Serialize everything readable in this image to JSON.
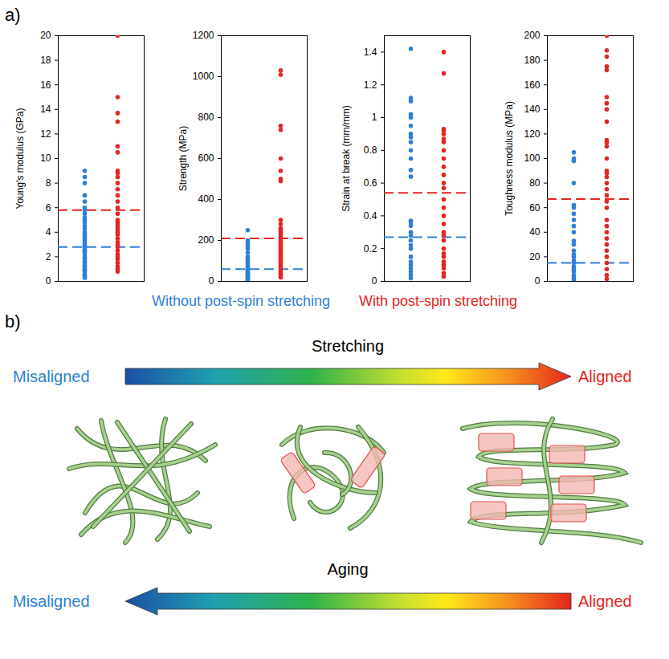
{
  "panel_label": "a)",
  "chart_data": [
    {
      "type": "scatter",
      "ylabel": "Young's modulus (GPa)",
      "ylim": [
        0,
        20
      ],
      "yticks": [
        0,
        2,
        4,
        6,
        8,
        10,
        12,
        14,
        16,
        18,
        20
      ],
      "tick_labels": "y",
      "legend": "bottom",
      "series": [
        {
          "name": "Without post-spin stretching",
          "color": "#2e7fd6",
          "mean": 2.8,
          "values": [
            9,
            8.5,
            8,
            7,
            6.5,
            6,
            5.8,
            5.5,
            5.2,
            5,
            4.8,
            4.5,
            4.3,
            4,
            3.8,
            3.6,
            3.4,
            3.2,
            3,
            2.9,
            2.8,
            2.6,
            2.5,
            2.4,
            2.2,
            2,
            1.9,
            1.8,
            1.6,
            1.5,
            1.3,
            1.2,
            1,
            0.9,
            0.8,
            0.6,
            0.5,
            0.4,
            0.3
          ]
        },
        {
          "name": "With post-spin stretching",
          "color": "#e52521",
          "mean": 5.8,
          "values": [
            20,
            15,
            13.7,
            13,
            11,
            10.5,
            9,
            8.8,
            8.5,
            8,
            7.5,
            7,
            6.5,
            6,
            5.5,
            5,
            4.8,
            4.6,
            4.4,
            4.2,
            4,
            3.8,
            3.5,
            3.2,
            3,
            2.8,
            2.5,
            2.2,
            2,
            1.8,
            1.5,
            1.2,
            1,
            0.8
          ]
        }
      ]
    },
    {
      "type": "scatter",
      "ylabel": "Strength (MPa)",
      "ylim": [
        0,
        1200
      ],
      "yticks": [
        0,
        200,
        400,
        600,
        800,
        1000,
        1200
      ],
      "tick_labels": "y",
      "legend": "bottom",
      "series": [
        {
          "name": "Without post-spin stretching",
          "color": "#2e7fd6",
          "mean": 60,
          "values": [
            250,
            200,
            185,
            175,
            160,
            140,
            120,
            110,
            100,
            90,
            80,
            70,
            65,
            60,
            55,
            50,
            45,
            40,
            35,
            30,
            25,
            20,
            15,
            10,
            5
          ]
        },
        {
          "name": "With post-spin stretching",
          "color": "#e52521",
          "mean": 210,
          "values": [
            1030,
            1010,
            760,
            740,
            600,
            540,
            500,
            490,
            300,
            280,
            260,
            250,
            240,
            230,
            220,
            210,
            200,
            190,
            180,
            170,
            160,
            150,
            140,
            130,
            120,
            110,
            100,
            90,
            80,
            70,
            60,
            50,
            40,
            30,
            20
          ]
        }
      ]
    },
    {
      "type": "scatter",
      "ylabel": "Strain at break (mm/mm)",
      "ylim": [
        0,
        1.5
      ],
      "yticks": [
        0,
        0.2,
        0.4,
        0.6,
        0.8,
        1,
        1.2,
        1.4
      ],
      "tick_labels": "y",
      "legend": "bottom",
      "series": [
        {
          "name": "Without post-spin stretching",
          "color": "#2e7fd6",
          "mean": 0.27,
          "values": [
            1.42,
            1.12,
            1.1,
            1.02,
            1,
            0.95,
            0.9,
            0.88,
            0.85,
            0.8,
            0.75,
            0.68,
            0.64,
            0.37,
            0.36,
            0.34,
            0.3,
            0.28,
            0.25,
            0.22,
            0.2,
            0.15,
            0.12,
            0.1,
            0.08,
            0.06,
            0.04,
            0.02
          ]
        },
        {
          "name": "With post-spin stretching",
          "color": "#e52521",
          "mean": 0.54,
          "values": [
            1.4,
            1.27,
            0.93,
            0.92,
            0.9,
            0.87,
            0.85,
            0.8,
            0.75,
            0.7,
            0.65,
            0.6,
            0.57,
            0.5,
            0.45,
            0.4,
            0.35,
            0.3,
            0.28,
            0.25,
            0.2,
            0.17,
            0.15,
            0.12,
            0.1,
            0.08,
            0.05,
            0.03
          ]
        }
      ]
    },
    {
      "type": "scatter",
      "ylabel": "Toughness modulus (MPa)",
      "ylim": [
        0,
        200
      ],
      "yticks": [
        0,
        20,
        40,
        60,
        80,
        100,
        120,
        140,
        160,
        180,
        200
      ],
      "tick_labels": "y",
      "legend": "bottom",
      "series": [
        {
          "name": "Without post-spin stretching",
          "color": "#2e7fd6",
          "mean": 15,
          "values": [
            105,
            100,
            98,
            80,
            62,
            60,
            55,
            50,
            45,
            40,
            33,
            30,
            25,
            22,
            20,
            17,
            15,
            12,
            10,
            8,
            5,
            3,
            1
          ]
        },
        {
          "name": "With post-spin stretching",
          "color": "#e52521",
          "mean": 67,
          "values": [
            200,
            188,
            183,
            175,
            172,
            150,
            145,
            140,
            130,
            115,
            113,
            110,
            100,
            90,
            88,
            85,
            80,
            75,
            70,
            65,
            60,
            50,
            45,
            40,
            35,
            30,
            25,
            20,
            15,
            10,
            5,
            2
          ]
        }
      ]
    }
  ],
  "diagram": {
    "panel_label": "b)",
    "top": {
      "label": "Stretching",
      "left": "Misaligned",
      "right": "Aligned"
    },
    "bottom": {
      "label": "Aging",
      "left": "Misaligned",
      "right": "Aligned"
    }
  }
}
